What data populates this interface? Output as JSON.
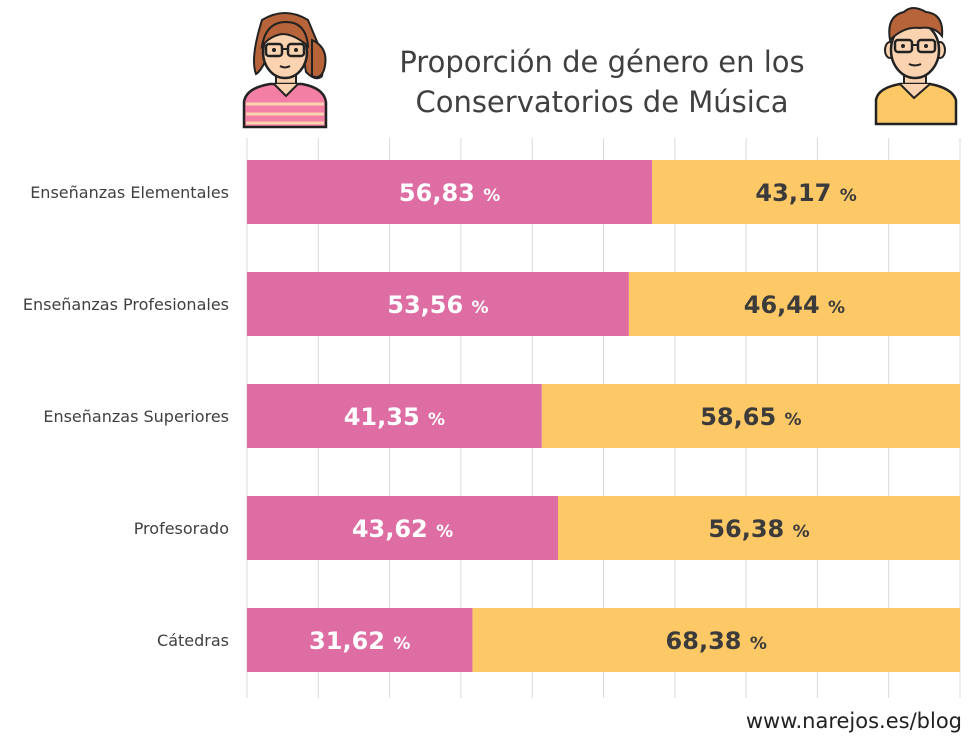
{
  "chart_data": {
    "type": "bar",
    "orientation": "horizontal",
    "stacked": true,
    "title": [
      "Proporción de género en los",
      "Conservatorios de Música"
    ],
    "categories": [
      "Enseñanzas Elementales",
      "Enseñanzas Profesionales",
      "Enseñanzas Superiores",
      "Profesorado",
      "Cátedras"
    ],
    "series": [
      {
        "values": [
          56.83,
          53.56,
          41.35,
          43.62,
          31.62
        ],
        "labels": [
          "56,83",
          "53,56",
          "41,35",
          "43,62",
          "31,62"
        ],
        "color": "#DD6DA3",
        "label_color": "#ffffff"
      },
      {
        "values": [
          43.17,
          46.44,
          58.65,
          56.38,
          68.38
        ],
        "labels": [
          "43,17",
          "46,44",
          "58,65",
          "56,38",
          "68,38"
        ],
        "color": "#FDC967",
        "label_color": "#3b3b3b"
      }
    ],
    "unit": "%",
    "xlim": [
      0,
      100
    ],
    "grid": true,
    "legend": "none",
    "icons": [
      "woman-avatar-icon",
      "man-avatar-icon"
    ]
  },
  "credit": "www.narejos.es/blog"
}
